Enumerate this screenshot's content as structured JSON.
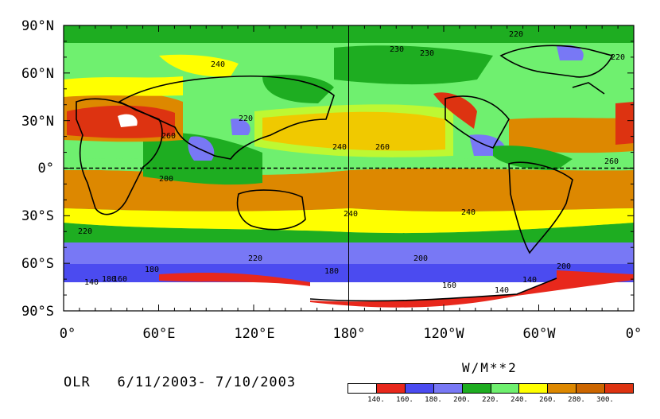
{
  "map": {
    "lat_labels": [
      "90°N",
      "60°N",
      "30°N",
      "0°",
      "30°S",
      "60°S",
      "90°S"
    ],
    "lon_labels": [
      "0°",
      "60°E",
      "120°E",
      "180°",
      "120°W",
      "60°W",
      "0°"
    ],
    "contour_labels": [
      "220",
      "240",
      "230",
      "230",
      "220",
      "220",
      "240",
      "260",
      "260",
      "260",
      "200",
      "240",
      "240",
      "220",
      "220",
      "200",
      "200",
      "180",
      "180",
      "180",
      "160",
      "140",
      "140",
      "160",
      "140"
    ],
    "colors": {
      "land_outline": "#000000",
      "grid": "#000000"
    }
  },
  "footer": {
    "variable": "OLR",
    "date_range": "6/11/2003- 7/10/2003"
  },
  "colorbar": {
    "units": "W/M**2",
    "labels": [
      "140.",
      "160.",
      "180.",
      "200.",
      "220.",
      "240.",
      "260.",
      "280.",
      "300."
    ],
    "colors": [
      "#ffffff",
      "#e8281c",
      "#4b4bf0",
      "#7878f5",
      "#1ead21",
      "#6ff06f",
      "#ffff00",
      "#dd8800",
      "#cc6600",
      "#dd3311"
    ]
  }
}
